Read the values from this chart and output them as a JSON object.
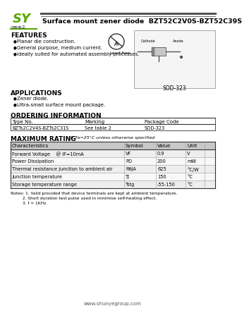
{
  "title": "Surface mount zener diode  BZT52C2V0S-BZT52C39S",
  "bg_color": "#ffffff",
  "features_title": "FEATURES",
  "features": [
    "Planar die construction.",
    "General purpose, medium current.",
    "Ideally suited for automated assembly processes."
  ],
  "applications_title": "APPLICATIONS",
  "applications": [
    "Zener diode.",
    "Ultra-small surface mount package."
  ],
  "ordering_title": "ORDERING INFORMATION",
  "ordering_headers": [
    "Type No.",
    "Marking",
    "Package Code"
  ],
  "ordering_row": [
    "BZTs2C2V4S-BZTs2C31S",
    "See table 2",
    "SOD-323"
  ],
  "max_rating_title": "MAXIMUM RATING",
  "max_rating_sub": "@ Ta=25°C unless otherwise specified",
  "table_headers": [
    "Characteristics",
    "Symbol",
    "Value",
    "Unit"
  ],
  "table_rows": [
    [
      "Forward Voltage    @ IF=10mA",
      "VF",
      "0.9",
      "V"
    ],
    [
      "Power Dissipation",
      "PD",
      "200",
      "mW"
    ],
    [
      "Thermal resistance junction to ambient air",
      "RθJA",
      "625",
      "°C/W"
    ],
    [
      "Junction temperature",
      "TJ",
      "150",
      "°C"
    ],
    [
      "Storage temperature range",
      "Tstg",
      "-55-150",
      "°C"
    ]
  ],
  "notes": [
    "Notes: 1. Valid provided that device terminals are kept at ambient temperature.",
    "         2. Short duration test pulse used in minimise self-heating effect.",
    "         3. f = 1KHz."
  ],
  "package_label": "SOD-323",
  "website": "www.shunyegroup.com",
  "lead_free_text": "Lead-free"
}
